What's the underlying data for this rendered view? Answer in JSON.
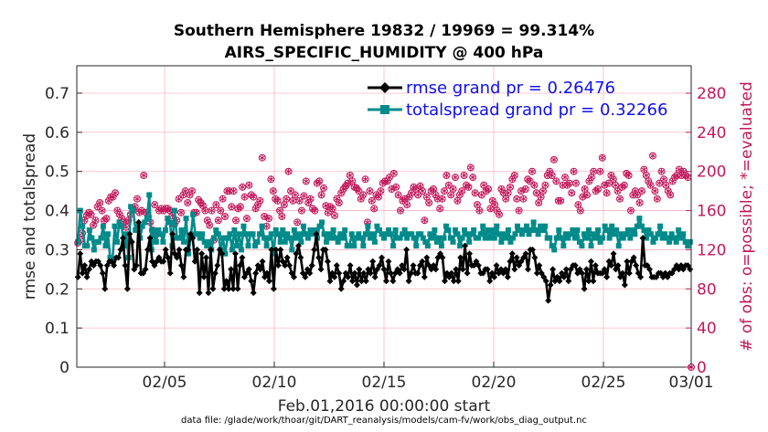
{
  "chart_data": {
    "type": "line",
    "title_line1": "Southern Hemisphere 19832 / 19969 = 99.314%",
    "title_line2": "AIRS_SPECIFIC_HUMIDITY @ 400 hPa",
    "ylabel": "rmse and totalspread",
    "y2label": "# of obs: o=possible; *=evaluated",
    "xlabel": "Feb.01,2016 00:00:00 start",
    "footnote": "data file: /glade/work/thoar/git/DART_reanalysis/models/cam-fv/work/obs_diag_output.nc",
    "ylim": [
      0,
      0.77
    ],
    "y2lim": [
      0,
      308
    ],
    "xlim": [
      1,
      29
    ],
    "yticks": [
      "0",
      "0.1",
      "0.2",
      "0.3",
      "0.4",
      "0.5",
      "0.6",
      "0.7"
    ],
    "y2ticks": [
      "0",
      "40",
      "80",
      "120",
      "160",
      "200",
      "240",
      "280"
    ],
    "xticks": [
      {
        "value": 5,
        "label": "02/05"
      },
      {
        "value": 10,
        "label": "02/10"
      },
      {
        "value": 15,
        "label": "02/15"
      },
      {
        "value": 20,
        "label": "02/20"
      },
      {
        "value": 25,
        "label": "02/25"
      },
      {
        "value": 29,
        "label": "03/01"
      }
    ],
    "colors": {
      "rmse": "#000000",
      "spread": "#008b8b",
      "obs": "#c2185b",
      "legend_text": "#1010ee",
      "grid": "#ffb6c1"
    },
    "series": [
      {
        "name": "rmse",
        "label": "rmse grand pr = 0.26476",
        "values": [
          0.23,
          0.29,
          0.24,
          0.26,
          0.23,
          0.25,
          0.27,
          0.26,
          0.27,
          0.27,
          0.26,
          0.24,
          0.2,
          0.26,
          0.27,
          0.27,
          0.26,
          0.28,
          0.28,
          0.3,
          0.33,
          0.26,
          0.2,
          0.34,
          0.32,
          0.25,
          0.26,
          0.37,
          0.24,
          0.24,
          0.25,
          0.3,
          0.33,
          0.27,
          0.26,
          0.27,
          0.28,
          0.27,
          0.27,
          0.3,
          0.28,
          0.24,
          0.34,
          0.29,
          0.28,
          0.3,
          0.26,
          0.23,
          0.3,
          0.3,
          0.34,
          0.33,
          0.27,
          0.3,
          0.19,
          0.29,
          0.23,
          0.28,
          0.19,
          0.3,
          0.2,
          0.24,
          0.26,
          0.3,
          0.29,
          0.2,
          0.22,
          0.2,
          0.25,
          0.2,
          0.29,
          0.2,
          0.26,
          0.28,
          0.23,
          0.24,
          0.25,
          0.22,
          0.19,
          0.24,
          0.26,
          0.25,
          0.27,
          0.23,
          0.24,
          0.22,
          0.3,
          0.2,
          0.3,
          0.26,
          0.3,
          0.27,
          0.26,
          0.28,
          0.26,
          0.24,
          0.23,
          0.29,
          0.31,
          0.28,
          0.24,
          0.23,
          0.25,
          0.24,
          0.26,
          0.3,
          0.34,
          0.28,
          0.25,
          0.3,
          0.3,
          0.27,
          0.22,
          0.24,
          0.23,
          0.26,
          0.24,
          0.2,
          0.22,
          0.24,
          0.23,
          0.26,
          0.22,
          0.24,
          0.21,
          0.25,
          0.22,
          0.24,
          0.22,
          0.25,
          0.24,
          0.27,
          0.23,
          0.25,
          0.26,
          0.28,
          0.25,
          0.22,
          0.27,
          0.24,
          0.22,
          0.24,
          0.25,
          0.24,
          0.26,
          0.25,
          0.3,
          0.22,
          0.24,
          0.26,
          0.24,
          0.24,
          0.26,
          0.27,
          0.23,
          0.28,
          0.26,
          0.25,
          0.26,
          0.25,
          0.28,
          0.29,
          0.28,
          0.22,
          0.24,
          0.23,
          0.24,
          0.22,
          0.25,
          0.22,
          0.28,
          0.25,
          0.31,
          0.24,
          0.29,
          0.26,
          0.26,
          0.27,
          0.26,
          0.24,
          0.24,
          0.25,
          0.25,
          0.22,
          0.24,
          0.23,
          0.26,
          0.24,
          0.25,
          0.24,
          0.25,
          0.23,
          0.27,
          0.29,
          0.25,
          0.28,
          0.26,
          0.27,
          0.28,
          0.29,
          0.25,
          0.3,
          0.3,
          0.28,
          0.24,
          0.26,
          0.24,
          0.23,
          0.22,
          0.17,
          0.21,
          0.25,
          0.22,
          0.23,
          0.22,
          0.24,
          0.23,
          0.25,
          0.22,
          0.25,
          0.26,
          0.26,
          0.24,
          0.25,
          0.24,
          0.2,
          0.25,
          0.22,
          0.27,
          0.22,
          0.26,
          0.24,
          0.24,
          0.24,
          0.25,
          0.23,
          0.27,
          0.26,
          0.29,
          0.25,
          0.26,
          0.23,
          0.24,
          0.21,
          0.27,
          0.24,
          0.27,
          0.28,
          0.26,
          0.24,
          0.23,
          0.33,
          0.26,
          0.26,
          0.25,
          0.23,
          0.23,
          0.23,
          0.24,
          0.24,
          0.23,
          0.24,
          0.23,
          0.24,
          0.24,
          0.25,
          0.26,
          0.25,
          0.26,
          0.25,
          0.26,
          0.26,
          0.25
        ]
      },
      {
        "name": "totalspread",
        "label": "totalspread grand pr = 0.32266",
        "values": [
          0.32,
          0.4,
          0.36,
          0.31,
          0.31,
          0.35,
          0.33,
          0.3,
          0.32,
          0.32,
          0.33,
          0.36,
          0.31,
          0.34,
          0.28,
          0.27,
          0.36,
          0.32,
          0.37,
          0.36,
          0.31,
          0.34,
          0.28,
          0.41,
          0.4,
          0.35,
          0.36,
          0.33,
          0.36,
          0.37,
          0.38,
          0.44,
          0.3,
          0.35,
          0.32,
          0.35,
          0.34,
          0.32,
          0.35,
          0.38,
          0.37,
          0.31,
          0.4,
          0.33,
          0.33,
          0.35,
          0.32,
          0.38,
          0.29,
          0.33,
          0.39,
          0.34,
          0.34,
          0.33,
          0.34,
          0.32,
          0.31,
          0.32,
          0.3,
          0.33,
          0.35,
          0.34,
          0.3,
          0.33,
          0.29,
          0.33,
          0.34,
          0.3,
          0.35,
          0.31,
          0.34,
          0.3,
          0.36,
          0.34,
          0.31,
          0.34,
          0.34,
          0.31,
          0.32,
          0.34,
          0.36,
          0.33,
          0.31,
          0.33,
          0.34,
          0.29,
          0.35,
          0.34,
          0.32,
          0.35,
          0.32,
          0.34,
          0.33,
          0.3,
          0.35,
          0.33,
          0.34,
          0.32,
          0.36,
          0.34,
          0.33,
          0.35,
          0.34,
          0.35,
          0.33,
          0.36,
          0.37,
          0.34,
          0.32,
          0.34,
          0.33,
          0.35,
          0.33,
          0.32,
          0.34,
          0.33,
          0.35,
          0.31,
          0.31,
          0.34,
          0.31,
          0.33,
          0.34,
          0.33,
          0.31,
          0.34,
          0.36,
          0.33,
          0.34,
          0.32,
          0.36,
          0.35,
          0.34,
          0.33,
          0.34,
          0.35,
          0.34,
          0.31,
          0.35,
          0.33,
          0.33,
          0.34,
          0.35,
          0.33,
          0.34,
          0.34,
          0.33,
          0.31,
          0.34,
          0.34,
          0.33,
          0.32,
          0.31,
          0.34,
          0.33,
          0.35,
          0.32,
          0.33,
          0.31,
          0.33,
          0.36,
          0.35,
          0.33,
          0.32,
          0.35,
          0.34,
          0.31,
          0.33,
          0.35,
          0.34,
          0.32,
          0.34,
          0.35,
          0.33,
          0.33,
          0.34,
          0.36,
          0.33,
          0.35,
          0.33,
          0.35,
          0.33,
          0.36,
          0.34,
          0.32,
          0.34,
          0.33,
          0.35,
          0.32,
          0.33,
          0.34,
          0.36,
          0.35,
          0.34,
          0.35,
          0.36,
          0.34,
          0.35,
          0.37,
          0.35,
          0.34,
          0.36,
          0.35,
          0.36,
          0.33,
          0.33,
          0.31,
          0.3,
          0.33,
          0.35,
          0.33,
          0.31,
          0.34,
          0.33,
          0.34,
          0.35,
          0.33,
          0.35,
          0.32,
          0.31,
          0.34,
          0.33,
          0.35,
          0.31,
          0.34,
          0.33,
          0.35,
          0.32,
          0.33,
          0.36,
          0.35,
          0.33,
          0.36,
          0.34,
          0.35,
          0.31,
          0.34,
          0.33,
          0.34,
          0.35,
          0.33,
          0.35,
          0.34,
          0.36,
          0.38,
          0.36,
          0.35,
          0.33,
          0.35,
          0.34,
          0.32,
          0.33,
          0.34,
          0.36,
          0.33,
          0.34,
          0.33,
          0.32,
          0.34,
          0.33,
          0.32,
          0.35,
          0.33,
          0.34,
          0.32,
          0.31,
          0.32
        ]
      },
      {
        "name": "obs_possible",
        "label": "possible",
        "values": [
          127,
          130,
          137,
          150,
          155,
          158,
          156,
          145,
          150,
          164,
          168,
          160,
          150,
          152,
          170,
          174,
          174,
          178,
          160,
          156,
          152,
          148,
          143,
          150,
          156,
          162,
          164,
          172,
          158,
          160,
          196,
          158,
          154,
          148,
          140,
          166,
          136,
          160,
          162,
          160,
          162,
          162,
          160,
          155,
          146,
          150,
          172,
          158,
          176,
          180,
          168,
          176,
          180,
          158,
          158,
          171,
          168,
          165,
          160,
          150,
          145,
          160,
          130,
          166,
          150,
          160,
          172,
          154,
          180,
          180,
          164,
          180,
          150,
          162,
          164,
          184,
          174,
          152,
          186,
          176,
          174,
          162,
          166,
          170,
          214,
          154,
          144,
          152,
          192,
          180,
          172,
          170,
          160,
          154,
          166,
          172,
          200,
          180,
          170,
          176,
          148,
          170,
          160,
          175,
          190,
          168,
          172,
          162,
          160,
          188,
          190,
          176,
          183,
          165,
          158,
          164,
          162,
          155,
          172,
          168,
          178,
          182,
          185,
          188,
          196,
          190,
          184,
          183,
          180,
          172,
          176,
          192,
          148,
          180,
          170,
          162,
          176,
          174,
          180,
          188,
          190,
          190,
          194,
          182,
          198,
          184,
          176,
          160,
          170,
          172,
          166,
          174,
          178,
          184,
          182,
          176,
          185,
          180,
          150,
          174,
          168,
          180,
          182,
          176,
          172,
          162,
          172,
          180,
          196,
          186,
          176,
          182,
          194,
          170,
          176,
          180,
          196,
          186,
          184,
          204,
          194,
          178,
          166,
          160,
          176,
          186,
          180,
          182,
          162,
          170,
          166,
          160,
          156,
          182,
          178,
          172,
          178,
          184,
          192,
          196,
          172,
          160,
          180,
          172,
          182,
          192,
          190,
          200,
          186,
          178,
          168,
          174,
          180,
          186,
          196,
          200,
          196,
          212,
          190,
          170,
          170,
          186,
          194,
          186,
          188,
          178,
          200,
          188,
          166,
          160,
          174,
          182,
          176,
          190,
          194,
          200,
          180,
          182,
          200,
          214,
          186,
          178,
          188,
          196,
          192,
          186,
          180,
          172,
          184,
          186,
          198,
          196,
          160,
          176,
          180,
          176,
          168,
          180,
          202,
          196,
          190,
          186,
          216,
          180,
          172,
          188,
          200,
          192,
          186,
          180,
          176,
          190,
          194,
          196,
          202,
          196,
          200,
          196,
          194,
          0
        ]
      },
      {
        "name": "obs_evaluated",
        "label": "evaluated",
        "values": [
          127,
          130,
          137,
          150,
          155,
          158,
          156,
          145,
          150,
          164,
          168,
          160,
          150,
          152,
          170,
          174,
          174,
          178,
          160,
          156,
          152,
          148,
          143,
          150,
          156,
          162,
          164,
          172,
          158,
          160,
          196,
          158,
          154,
          148,
          140,
          166,
          136,
          160,
          162,
          160,
          162,
          162,
          160,
          155,
          146,
          150,
          172,
          158,
          176,
          180,
          168,
          176,
          180,
          158,
          158,
          171,
          168,
          165,
          160,
          150,
          145,
          160,
          130,
          166,
          150,
          160,
          172,
          154,
          180,
          180,
          164,
          180,
          150,
          162,
          164,
          184,
          174,
          152,
          186,
          176,
          174,
          162,
          166,
          170,
          214,
          154,
          144,
          152,
          192,
          180,
          172,
          170,
          160,
          154,
          166,
          172,
          200,
          180,
          170,
          176,
          148,
          170,
          160,
          175,
          190,
          168,
          172,
          162,
          160,
          188,
          190,
          176,
          183,
          165,
          158,
          164,
          162,
          155,
          172,
          168,
          178,
          182,
          185,
          188,
          196,
          190,
          184,
          183,
          180,
          172,
          176,
          192,
          148,
          180,
          170,
          162,
          176,
          174,
          180,
          188,
          190,
          190,
          194,
          182,
          198,
          184,
          176,
          160,
          170,
          172,
          166,
          174,
          178,
          184,
          182,
          176,
          185,
          180,
          150,
          174,
          168,
          180,
          182,
          176,
          172,
          162,
          172,
          180,
          196,
          186,
          176,
          182,
          194,
          170,
          176,
          180,
          196,
          186,
          184,
          204,
          194,
          178,
          166,
          160,
          176,
          186,
          180,
          182,
          162,
          170,
          166,
          160,
          156,
          182,
          178,
          172,
          178,
          184,
          192,
          196,
          172,
          160,
          180,
          172,
          182,
          192,
          190,
          200,
          186,
          178,
          168,
          174,
          180,
          186,
          196,
          200,
          196,
          212,
          190,
          170,
          170,
          186,
          194,
          186,
          188,
          178,
          200,
          188,
          166,
          160,
          174,
          182,
          176,
          190,
          194,
          200,
          180,
          182,
          200,
          214,
          186,
          178,
          188,
          196,
          192,
          186,
          180,
          172,
          184,
          186,
          198,
          196,
          160,
          176,
          180,
          176,
          168,
          180,
          202,
          196,
          190,
          186,
          216,
          180,
          172,
          188,
          200,
          192,
          186,
          180,
          176,
          190,
          194,
          196,
          202,
          196,
          200,
          196,
          194,
          0
        ]
      }
    ]
  }
}
